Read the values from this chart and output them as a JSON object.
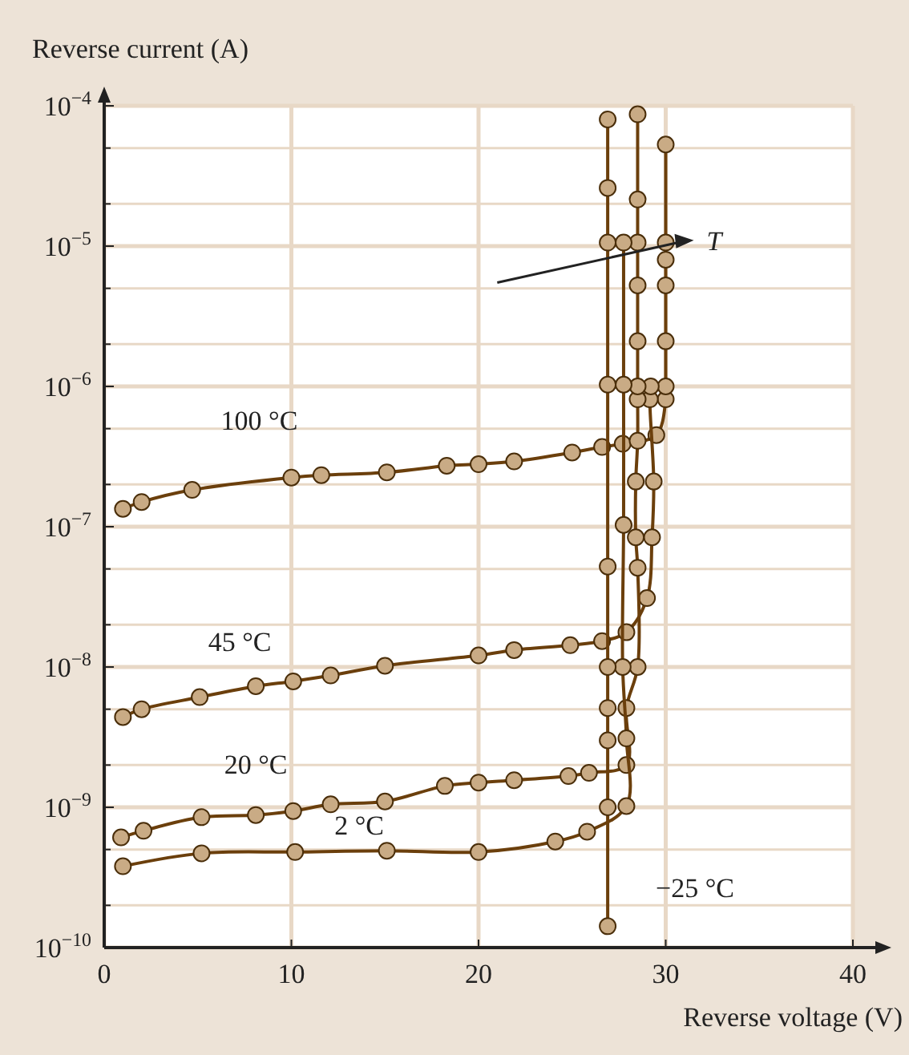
{
  "chart_data": {
    "type": "line",
    "xlabel": "Reverse voltage (V)",
    "ylabel": "Reverse current (A)",
    "log": "y",
    "grid": true,
    "marker": "circle",
    "line_style": "solid",
    "xlim": [
      0,
      40
    ],
    "xticks": [
      0,
      10,
      20,
      30,
      40
    ],
    "ylim": [
      1e-10,
      0.0001
    ],
    "yticks": [
      {
        "value": 1e-10,
        "label": "10$^{−10}$"
      },
      {
        "value": 2e-10,
        "label": null
      },
      {
        "value": 5e-10,
        "label": null
      },
      {
        "value": 1e-09,
        "label": "10$^{−9}$"
      },
      {
        "value": 2e-09,
        "label": null
      },
      {
        "value": 5e-09,
        "label": null
      },
      {
        "value": 1e-08,
        "label": "10$^{−8}$"
      },
      {
        "value": 2e-08,
        "label": null
      },
      {
        "value": 5e-08,
        "label": null
      },
      {
        "value": 1e-07,
        "label": "10$^{−7}$"
      },
      {
        "value": 2e-07,
        "label": null
      },
      {
        "value": 5e-07,
        "label": null
      },
      {
        "value": 1e-06,
        "label": "10$^{−6}$"
      },
      {
        "value": 2e-06,
        "label": null
      },
      {
        "value": 5e-06,
        "label": null
      },
      {
        "value": 1e-05,
        "label": "10$^{−5}$"
      },
      {
        "value": 2e-05,
        "label": null
      },
      {
        "value": 5e-05,
        "label": null
      },
      {
        "value": 0.0001,
        "label": "10$^{−4}$"
      }
    ],
    "annotations": [
      "T"
    ],
    "series": [
      {
        "name": "100 °C",
        "color": "#6b3f0c",
        "x": [
          1,
          2,
          4.7,
          10,
          11.6,
          15.1,
          18.3,
          20,
          21.9,
          25,
          26.6,
          27.7,
          29.5,
          30,
          30,
          30,
          30,
          30,
          30,
          30
        ],
        "values": [
          1.34e-07,
          1.5e-07,
          1.83e-07,
          2.24e-07,
          2.33e-07,
          2.44e-07,
          2.72e-07,
          2.79e-07,
          2.92e-07,
          3.38e-07,
          3.7e-07,
          3.9e-07,
          4.5e-07,
          8.1e-07,
          1e-06,
          2.1e-06,
          5.25e-06,
          8e-06,
          1.06e-05,
          5.3e-05
        ]
      },
      {
        "name": "45 °C",
        "color": "#6b3f0c",
        "x": [
          1,
          2,
          5.1,
          8.1,
          10.1,
          12.1,
          15,
          20,
          21.9,
          24.9,
          26.6,
          27.9,
          29,
          29.27,
          29.36,
          29.15,
          29.2
        ],
        "values": [
          4.4e-09,
          5e-09,
          6.1e-09,
          7.3e-09,
          7.9e-09,
          8.7e-09,
          1.02e-08,
          1.21e-08,
          1.32e-08,
          1.43e-08,
          1.53e-08,
          1.77e-08,
          3.1e-08,
          8.4e-08,
          2.1e-07,
          8.1e-07,
          1e-06
        ]
      },
      {
        "name": "20 °C",
        "color": "#6b3f0c",
        "x": [
          0.9,
          2.1,
          5.2,
          8.1,
          10.1,
          12.1,
          15,
          18.2,
          20,
          21.9,
          24.8,
          25.9,
          27.9,
          27.9,
          28.5,
          28.5,
          28.4,
          28.4,
          28.5,
          28.5,
          28.5,
          28.5,
          28.5,
          28.5,
          28.5,
          28.5
        ],
        "values": [
          6.1e-10,
          6.8e-10,
          8.5e-10,
          8.8e-10,
          9.4e-10,
          1.05e-09,
          1.1e-09,
          1.42e-09,
          1.5e-09,
          1.56e-09,
          1.67e-09,
          1.76e-09,
          2e-09,
          5.1e-09,
          1e-08,
          5.1e-08,
          8.4e-08,
          2.1e-07,
          4.1e-07,
          8.1e-07,
          1e-06,
          2.1e-06,
          5.25e-06,
          1.06e-05,
          2.15e-05,
          8.7e-05
        ]
      },
      {
        "name": "2 °C",
        "color": "#6b3f0c",
        "x": [
          1,
          5.2,
          10.2,
          15.1,
          20,
          24.1,
          25.8,
          27.9,
          27.9,
          27.7,
          27.75,
          27.75,
          27.75
        ],
        "values": [
          3.8e-10,
          4.7e-10,
          4.8e-10,
          4.9e-10,
          4.8e-10,
          5.7e-10,
          6.7e-10,
          1.02e-09,
          3.1e-09,
          1e-08,
          1.03e-07,
          1.03e-06,
          1.06e-05
        ]
      },
      {
        "name": "−25 °C",
        "color": "#6b3f0c",
        "x": [
          26.9,
          26.9,
          26.9,
          26.9,
          26.9,
          26.9,
          26.9,
          26.9,
          26.9,
          26.9
        ],
        "values": [
          1.42e-10,
          1e-09,
          3e-09,
          5.1e-09,
          1e-08,
          5.2e-08,
          1.03e-06,
          1.06e-05,
          2.6e-05,
          8e-05
        ]
      }
    ]
  }
}
